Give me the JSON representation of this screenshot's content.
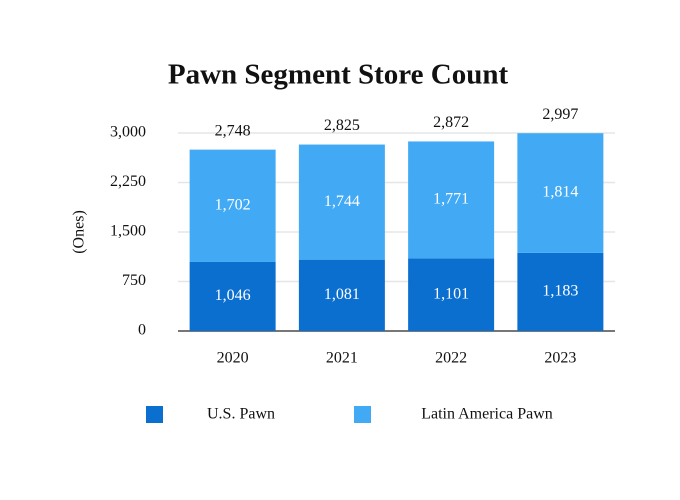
{
  "chart_data": {
    "type": "stacked-bar",
    "title": "Pawn Segment Store Count",
    "y_label": "(Ones)",
    "categories": [
      "2020",
      "2021",
      "2022",
      "2023"
    ],
    "series": [
      {
        "name": "U.S. Pawn",
        "color": "#0b6fd0",
        "values": [
          1046,
          1081,
          1101,
          1183
        ],
        "value_labels": [
          "1,046",
          "1,081",
          "1,101",
          "1,183"
        ]
      },
      {
        "name": "Latin America Pawn",
        "color": "#42aaf5",
        "values": [
          1702,
          1744,
          1771,
          1814
        ],
        "value_labels": [
          "1,702",
          "1,744",
          "1,771",
          "1,814"
        ]
      }
    ],
    "totals": {
      "values": [
        2748,
        2825,
        2872,
        2997
      ],
      "value_labels": [
        "2,748",
        "2,825",
        "2,872",
        "2,997"
      ]
    },
    "ylim": [
      0,
      3000
    ],
    "yticks": [
      0,
      750,
      {
        "value": 1500,
        "label": "1,500"
      },
      {
        "value": 2250,
        "label": "2,250"
      },
      {
        "value": 3000,
        "label": "3,000"
      }
    ],
    "grid": true
  }
}
